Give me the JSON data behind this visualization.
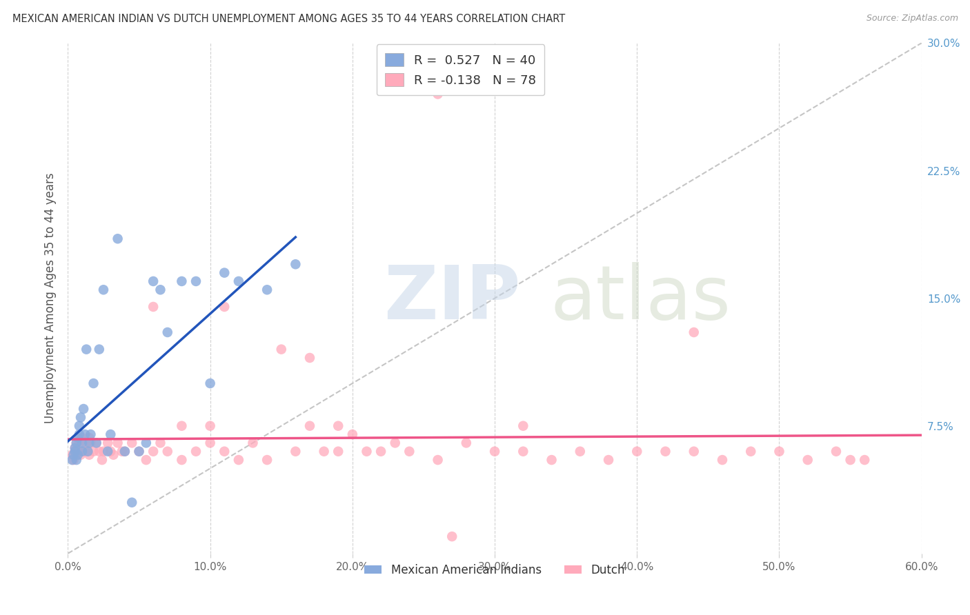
{
  "title": "MEXICAN AMERICAN INDIAN VS DUTCH UNEMPLOYMENT AMONG AGES 35 TO 44 YEARS CORRELATION CHART",
  "source": "Source: ZipAtlas.com",
  "ylabel": "Unemployment Among Ages 35 to 44 years",
  "x_tick_values": [
    0.0,
    0.1,
    0.2,
    0.3,
    0.4,
    0.5,
    0.6
  ],
  "y_tick_labels": [
    "7.5%",
    "15.0%",
    "22.5%",
    "30.0%"
  ],
  "y_tick_values": [
    0.075,
    0.15,
    0.225,
    0.3
  ],
  "xlim": [
    0.0,
    0.6
  ],
  "ylim": [
    0.0,
    0.3
  ],
  "blue_R": 0.527,
  "blue_N": 40,
  "pink_R": -0.138,
  "pink_N": 78,
  "blue_color": "#88AADD",
  "blue_line_color": "#2255BB",
  "pink_color": "#FFAABB",
  "pink_line_color": "#EE5588",
  "ref_line_color": "#BBBBBB",
  "grid_color": "#CCCCCC",
  "title_color": "#333333",
  "source_color": "#999999",
  "ytick_color": "#5599CC",
  "xtick_color": "#666666",
  "blue_label": "Mexican American Indians",
  "pink_label": "Dutch",
  "blue_x": [
    0.003,
    0.004,
    0.005,
    0.005,
    0.006,
    0.006,
    0.007,
    0.007,
    0.008,
    0.008,
    0.009,
    0.01,
    0.01,
    0.011,
    0.012,
    0.013,
    0.014,
    0.015,
    0.016,
    0.018,
    0.02,
    0.022,
    0.025,
    0.028,
    0.03,
    0.035,
    0.04,
    0.045,
    0.05,
    0.055,
    0.06,
    0.065,
    0.07,
    0.08,
    0.09,
    0.1,
    0.11,
    0.12,
    0.14,
    0.16
  ],
  "blue_y": [
    0.055,
    0.058,
    0.06,
    0.062,
    0.055,
    0.065,
    0.058,
    0.068,
    0.075,
    0.07,
    0.08,
    0.06,
    0.065,
    0.085,
    0.07,
    0.12,
    0.06,
    0.065,
    0.07,
    0.1,
    0.065,
    0.12,
    0.155,
    0.06,
    0.07,
    0.185,
    0.06,
    0.03,
    0.06,
    0.065,
    0.16,
    0.155,
    0.13,
    0.16,
    0.16,
    0.1,
    0.165,
    0.16,
    0.155,
    0.17
  ],
  "pink_x": [
    0.003,
    0.004,
    0.005,
    0.005,
    0.006,
    0.006,
    0.007,
    0.008,
    0.009,
    0.01,
    0.01,
    0.012,
    0.013,
    0.014,
    0.015,
    0.015,
    0.016,
    0.018,
    0.02,
    0.022,
    0.024,
    0.025,
    0.028,
    0.03,
    0.032,
    0.035,
    0.038,
    0.04,
    0.045,
    0.05,
    0.055,
    0.06,
    0.065,
    0.07,
    0.08,
    0.09,
    0.1,
    0.11,
    0.12,
    0.13,
    0.14,
    0.15,
    0.16,
    0.17,
    0.18,
    0.19,
    0.2,
    0.21,
    0.22,
    0.24,
    0.26,
    0.28,
    0.3,
    0.32,
    0.34,
    0.36,
    0.38,
    0.4,
    0.42,
    0.44,
    0.46,
    0.48,
    0.5,
    0.52,
    0.54,
    0.55,
    0.56,
    0.26,
    0.32,
    0.44,
    0.06,
    0.08,
    0.1,
    0.11,
    0.17,
    0.19,
    0.23,
    0.27
  ],
  "pink_y": [
    0.058,
    0.055,
    0.062,
    0.06,
    0.065,
    0.058,
    0.06,
    0.065,
    0.058,
    0.06,
    0.068,
    0.06,
    0.065,
    0.06,
    0.058,
    0.068,
    0.065,
    0.06,
    0.065,
    0.06,
    0.055,
    0.06,
    0.065,
    0.06,
    0.058,
    0.065,
    0.06,
    0.06,
    0.065,
    0.06,
    0.055,
    0.06,
    0.065,
    0.06,
    0.055,
    0.06,
    0.065,
    0.06,
    0.055,
    0.065,
    0.055,
    0.12,
    0.06,
    0.115,
    0.06,
    0.06,
    0.07,
    0.06,
    0.06,
    0.06,
    0.055,
    0.065,
    0.06,
    0.06,
    0.055,
    0.06,
    0.055,
    0.06,
    0.06,
    0.06,
    0.055,
    0.06,
    0.06,
    0.055,
    0.06,
    0.055,
    0.055,
    0.27,
    0.075,
    0.13,
    0.145,
    0.075,
    0.075,
    0.145,
    0.075,
    0.075,
    0.065,
    0.01
  ]
}
